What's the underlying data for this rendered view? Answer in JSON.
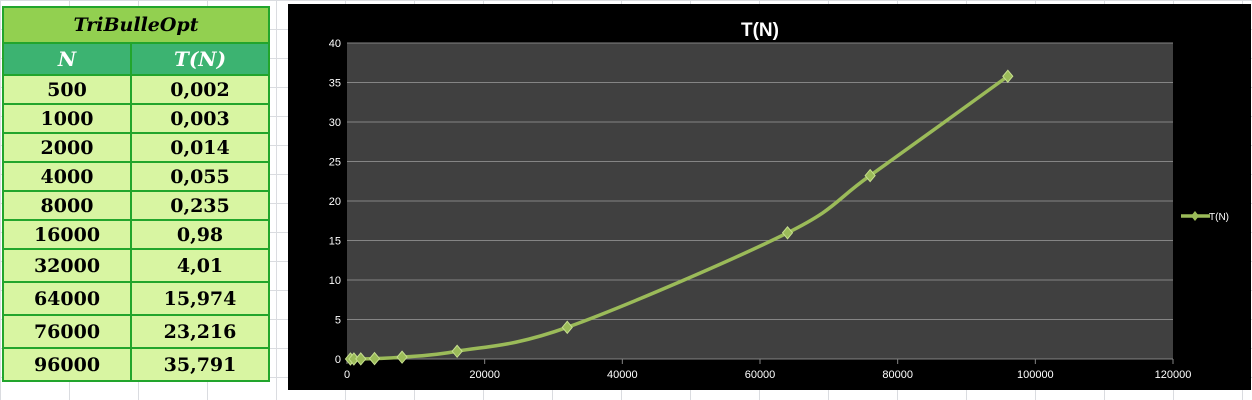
{
  "table": {
    "title": "TriBulleOpt",
    "headers": [
      "N",
      "T(N)"
    ],
    "rows": [
      {
        "n": "500",
        "t": "0,002"
      },
      {
        "n": "1000",
        "t": "0,003"
      },
      {
        "n": "2000",
        "t": "0,014"
      },
      {
        "n": "4000",
        "t": "0,055"
      },
      {
        "n": "8000",
        "t": "0,235"
      },
      {
        "n": "16000",
        "t": "0,98"
      },
      {
        "n": "32000",
        "t": "4,01"
      },
      {
        "n": "64000",
        "t": "15,974"
      },
      {
        "n": "76000",
        "t": "23,216"
      },
      {
        "n": "96000",
        "t": "35,791"
      }
    ]
  },
  "chart_data": {
    "type": "scatter",
    "title": "T(N)",
    "xlabel": "",
    "ylabel": "",
    "xlim": [
      0,
      120000
    ],
    "ylim": [
      0,
      40
    ],
    "xticks": [
      0,
      20000,
      40000,
      60000,
      80000,
      100000,
      120000
    ],
    "yticks": [
      0,
      5,
      10,
      15,
      20,
      25,
      30,
      35,
      40
    ],
    "grid": true,
    "legend": "right",
    "line_style": "smooth line with diamond markers",
    "series": [
      {
        "name": "T(N)",
        "x": [
          500,
          1000,
          2000,
          4000,
          8000,
          16000,
          32000,
          64000,
          76000,
          96000
        ],
        "y": [
          0.002,
          0.003,
          0.014,
          0.055,
          0.235,
          0.98,
          4.01,
          15.974,
          23.216,
          35.791
        ],
        "color": "#9bbb59"
      }
    ],
    "colors": {
      "background": "#000000",
      "plot_area": "#404040",
      "gridline": "#858585",
      "text": "#ffffff"
    }
  }
}
